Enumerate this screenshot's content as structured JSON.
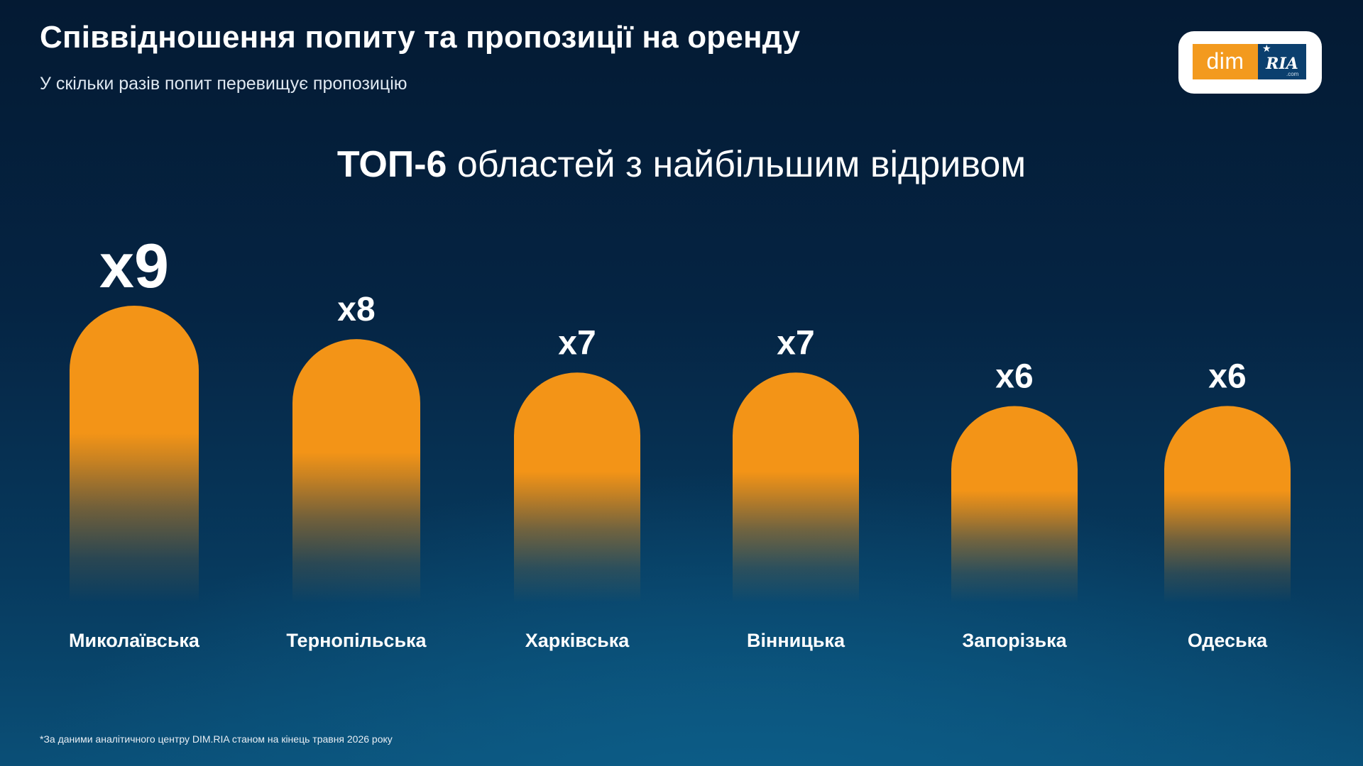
{
  "header": {
    "title": "Співвідношення попиту та пропозиції на оренду",
    "subtitle": "У скільки разів попит перевищує пропозицію"
  },
  "logo": {
    "dim_text": "dim",
    "ria_text": "RIA",
    "com_text": ".com"
  },
  "chart_heading": {
    "bold": "ТОП-6",
    "rest": "областей з найбільшим відривом"
  },
  "chart_data": {
    "type": "bar",
    "categories": [
      "Миколаївська",
      "Тернопільська",
      "Харківська",
      "Вінницька",
      "Запорізька",
      "Одеська"
    ],
    "values": [
      9,
      8,
      7,
      7,
      6,
      6
    ],
    "value_labels": [
      "x9",
      "x8",
      "x7",
      "x7",
      "x6",
      "x6"
    ],
    "title": "ТОП-6 областей з найбільшим відривом",
    "xlabel": "",
    "ylabel": "",
    "grid": false,
    "legend": "none",
    "bar_color": "#f39417"
  },
  "footnote": "*За даними аналітичного центру DIM.RIA станом на кінець травня 2026 року",
  "colors": {
    "accent": "#f39417",
    "background_dark": "#041a33",
    "background_light": "#0a4f77",
    "logo_blue": "#0b3f6e"
  }
}
